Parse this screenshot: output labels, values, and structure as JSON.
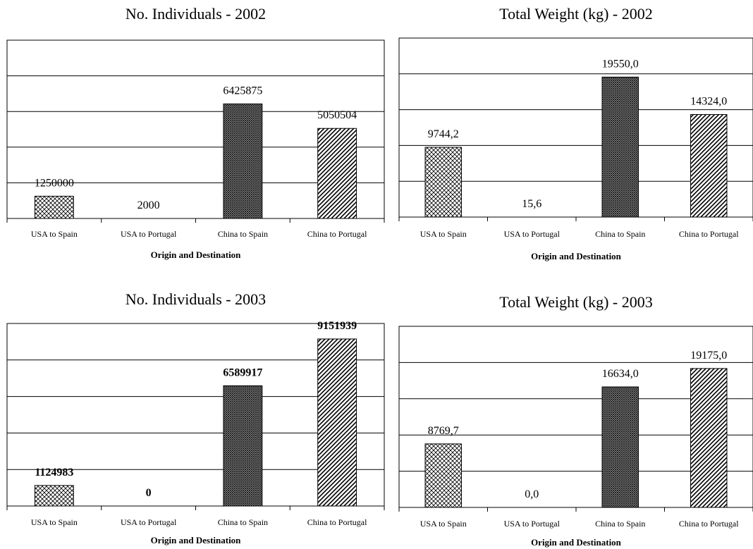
{
  "chart_data": [
    {
      "type": "bar",
      "title": "No. Individuals - 2002",
      "xlabel": "Origin and Destination",
      "ylabel": "",
      "categories": [
        "USA to Spain",
        "USA to Portugal",
        "China to Spain",
        "China to Portugal"
      ],
      "values": [
        1250000,
        2000,
        6425875,
        5050504
      ],
      "value_labels": [
        "1250000",
        "2000",
        "6425875",
        "5050504"
      ],
      "ylim": [
        0,
        10000000
      ],
      "grid": true,
      "value_labels_bold": false
    },
    {
      "type": "bar",
      "title": "Total Weight (kg) - 2002",
      "xlabel": "Origin and Destination",
      "ylabel": "",
      "categories": [
        "USA to Spain",
        "USA to Portugal",
        "China to Spain",
        "China to Portugal"
      ],
      "values": [
        9744.2,
        15.6,
        19550.0,
        14324.0
      ],
      "value_labels": [
        "9744,2",
        "15,6",
        "19550,0",
        "14324,0"
      ],
      "ylim": [
        0,
        25000
      ],
      "grid": true,
      "value_labels_bold": false
    },
    {
      "type": "bar",
      "title": "No. Individuals - 2003",
      "xlabel": "Origin and Destination",
      "ylabel": "",
      "categories": [
        "USA to Spain",
        "USA to Portugal",
        "China to Spain",
        "China to Portugal"
      ],
      "values": [
        1124983,
        0,
        6589917,
        9151939
      ],
      "value_labels": [
        "1124983",
        "0",
        "6589917",
        "9151939"
      ],
      "ylim": [
        0,
        10000000
      ],
      "grid": true,
      "value_labels_bold": true
    },
    {
      "type": "bar",
      "title": "Total Weight (kg) - 2003",
      "xlabel": "Origin and Destination",
      "ylabel": "",
      "categories": [
        "USA to Spain",
        "USA to Portugal",
        "China to Spain",
        "China to Portugal"
      ],
      "values": [
        8769.7,
        0.0,
        16634.0,
        19175.0
      ],
      "value_labels": [
        "8769,7",
        "0,0",
        "16634,0",
        "19175,0"
      ],
      "ylim": [
        0,
        25000
      ],
      "grid": true,
      "value_labels_bold": false
    }
  ]
}
